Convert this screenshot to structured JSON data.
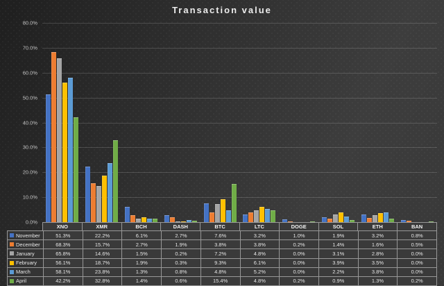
{
  "chart_data": {
    "type": "bar",
    "title": "Transaction value",
    "categories": [
      "XNO",
      "XMR",
      "BCH",
      "DASH",
      "BTC",
      "LTC",
      "DOGE",
      "SOL",
      "ETH",
      "BAN"
    ],
    "series": [
      {
        "name": "November",
        "color": "#4472C4",
        "values": [
          51.3,
          22.2,
          6.1,
          2.7,
          7.6,
          3.2,
          1.0,
          1.9,
          3.2,
          0.8
        ]
      },
      {
        "name": "December",
        "color": "#ED7D31",
        "values": [
          68.3,
          15.7,
          2.7,
          1.9,
          3.8,
          3.8,
          0.2,
          1.4,
          1.6,
          0.5
        ]
      },
      {
        "name": "January",
        "color": "#A5A5A5",
        "values": [
          65.8,
          14.6,
          1.5,
          0.2,
          7.2,
          4.8,
          0.0,
          3.1,
          2.8,
          0.0
        ]
      },
      {
        "name": "February",
        "color": "#FFC000",
        "values": [
          56.1,
          18.7,
          1.9,
          0.3,
          9.3,
          6.1,
          0.0,
          3.9,
          3.5,
          0.0
        ]
      },
      {
        "name": "March",
        "color": "#5B9BD5",
        "values": [
          58.1,
          23.8,
          1.3,
          0.8,
          4.8,
          5.2,
          0.0,
          2.2,
          3.8,
          0.0
        ]
      },
      {
        "name": "April",
        "color": "#70AD47",
        "values": [
          42.2,
          32.8,
          1.4,
          0.6,
          15.4,
          4.8,
          0.2,
          0.9,
          1.3,
          0.2
        ]
      }
    ],
    "ylim": [
      0,
      80
    ],
    "ytick_labels": [
      "80.0%",
      "70.0%",
      "60.0%",
      "50.0%",
      "40.0%",
      "30.0%",
      "20.0%",
      "10.0%",
      "0.0%"
    ],
    "grid": true,
    "legend_position": "data-table-left",
    "value_suffix": "%",
    "value_decimals": 1,
    "background_color": "#333333",
    "gridline_color": "#5a5a5a",
    "table_border_color": "#989898",
    "title_color": "#ececec"
  }
}
